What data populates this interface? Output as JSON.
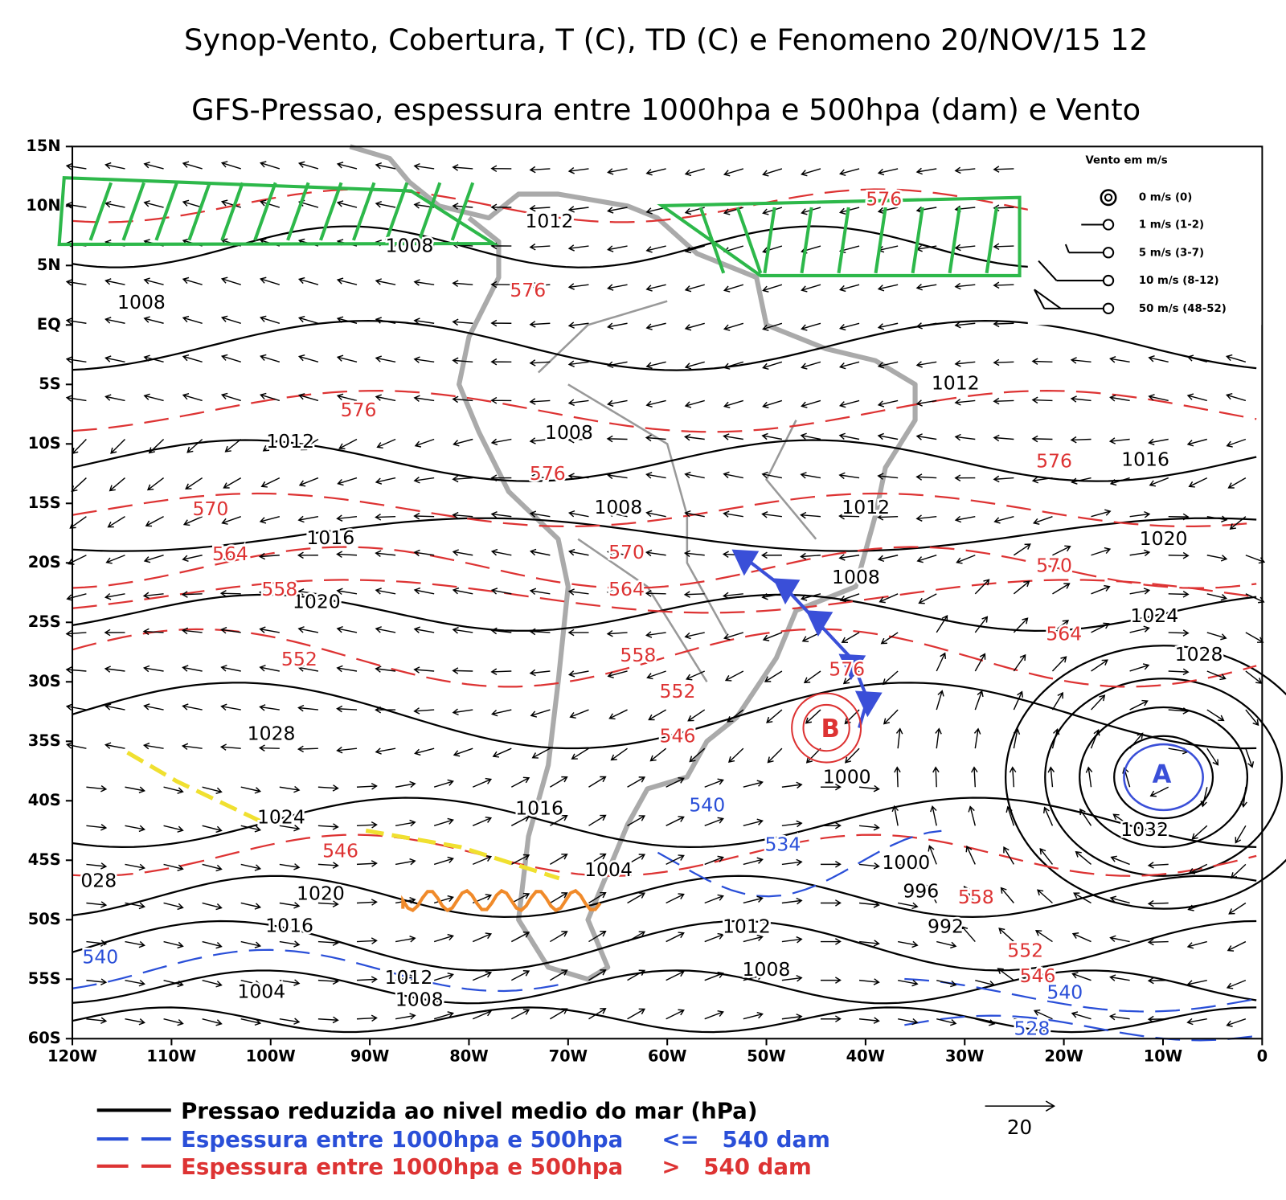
{
  "header": {
    "title": "Synop-Vento, Cobertura, T (C), TD (C) e Fenomeno 20/NOV/15 12",
    "subtitle": "GFS-Pressao, espessura entre 1000hpa e 500hpa (dam) e Vento"
  },
  "map": {
    "lat_labels": [
      "15N",
      "10N",
      "5N",
      "EQ",
      "5S",
      "10S",
      "15S",
      "20S",
      "25S",
      "30S",
      "35S",
      "40S",
      "45S",
      "50S",
      "55S",
      "60S"
    ],
    "lon_labels": [
      "120W",
      "110W",
      "100W",
      "90W",
      "80W",
      "70W",
      "60W",
      "50W",
      "40W",
      "30W",
      "20W",
      "10W",
      "0"
    ],
    "isobar_labels": [
      "1012",
      "1008",
      "1008",
      "1012",
      "1008",
      "1012",
      "1016",
      "1008",
      "1012",
      "1016",
      "1020",
      "1008",
      "1020",
      "1024",
      "1028",
      "1028",
      "1000",
      "1024",
      "1016",
      "1032",
      "1000",
      "1004",
      "028",
      "996",
      "1020",
      "992",
      "1012",
      "1016",
      "1008",
      "1012",
      "1004",
      "1008"
    ],
    "thickness_labels_red": [
      "576",
      "576",
      "576",
      "576",
      "576",
      "570",
      "570",
      "570",
      "564",
      "564",
      "564",
      "558",
      "558",
      "558",
      "552",
      "552",
      "552",
      "546",
      "546",
      "546",
      "576"
    ],
    "thickness_labels_blue": [
      "540",
      "534",
      "540",
      "540",
      "528"
    ],
    "high_label": "A",
    "low_label": "B"
  },
  "wind_legend": {
    "title": "Vento em m/s",
    "entries": [
      "0 m/s (0)",
      "1 m/s (1-2)",
      "5 m/s (3-7)",
      "10 m/s (8-12)",
      "50 m/s (48-52)"
    ],
    "scale_label": "20"
  },
  "legend": {
    "entries": [
      "Pressao reduzida ao nivel medio do mar (hPa)",
      "Espessura entre 1000hpa e 500hpa     <=   540 dam",
      "Espessura entre 1000hpa e 500hpa     >   540 dam"
    ]
  }
}
